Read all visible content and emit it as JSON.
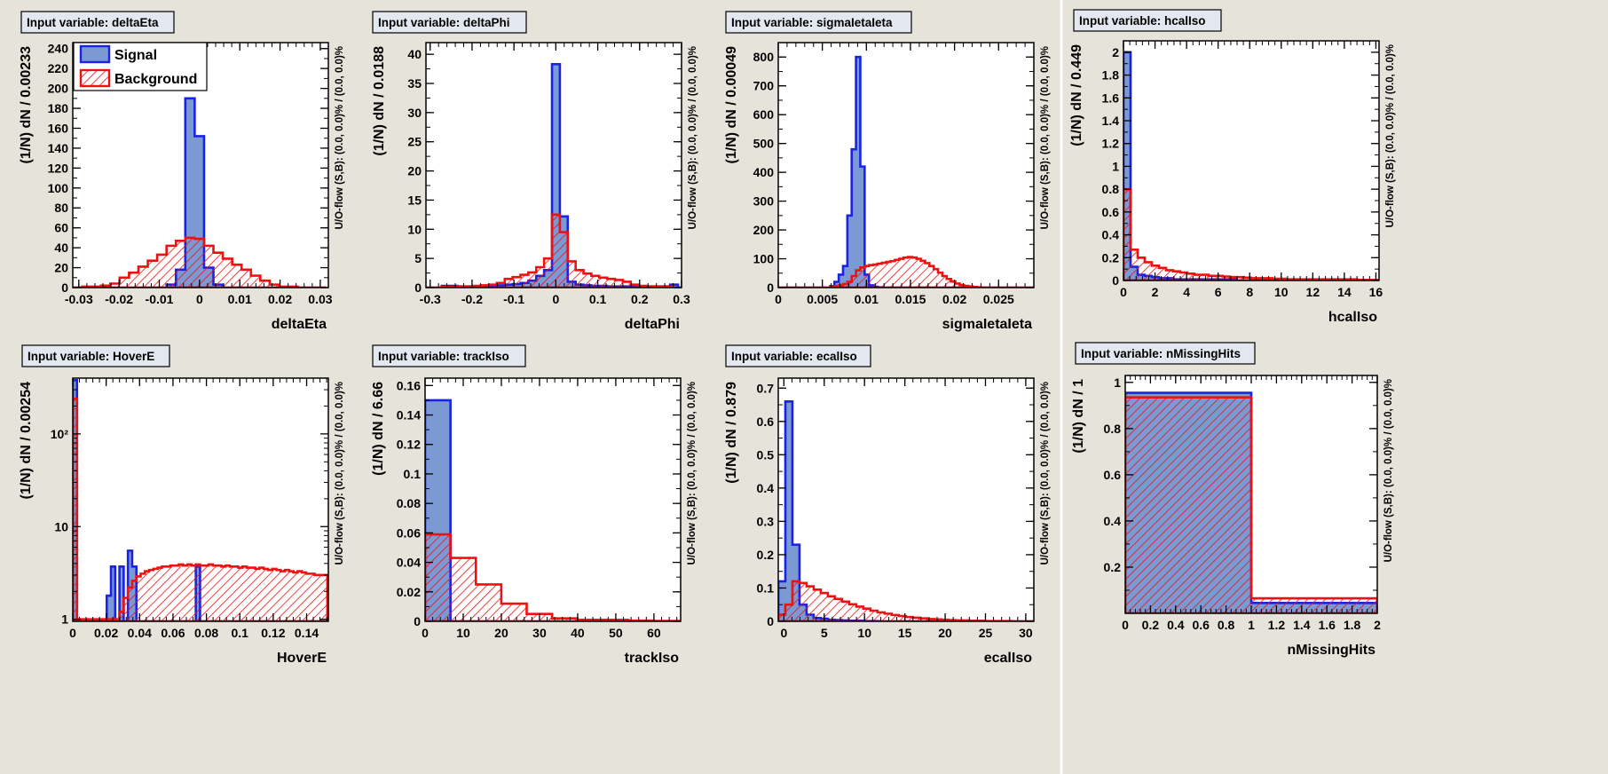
{
  "colors": {
    "background": "#e6e4da",
    "signal_fill": "#7b9ad4",
    "signal_line": "#1a22e6",
    "background_line": "#ee1111",
    "title_box": "#e3e8f0"
  },
  "legend": {
    "signal_label": "Signal",
    "background_label": "Background",
    "placement": "top-left of first panel"
  },
  "chart_data": [
    {
      "type": "histogram",
      "title": "Input variable: deltaEta",
      "xlabel": "deltaEta",
      "ylabel": "(1/N) dN / 0.00233",
      "overflow_label": "U/O-flow (S,B): (0.0, 0.0)% / (0.0, 0.0)%",
      "xlim": [
        -0.0315,
        0.032
      ],
      "ylim": [
        0,
        246
      ],
      "yscale": "linear",
      "xticks": [
        -0.03,
        -0.02,
        -0.01,
        0,
        0.01,
        0.02,
        0.03
      ],
      "xtick_labels": [
        "-0.03",
        "-0.02",
        "-0.01",
        "0",
        "0.01",
        "0.02",
        "0.03"
      ],
      "yticks": [
        0,
        20,
        40,
        60,
        80,
        100,
        120,
        140,
        160,
        180,
        200,
        220,
        240
      ],
      "ytick_labels": [
        "0",
        "20",
        "40",
        "60",
        "80",
        "100",
        "120",
        "140",
        "160",
        "180",
        "200",
        "220",
        "240"
      ],
      "bin_start": -0.0315,
      "bin_width": 0.00233,
      "signal": [
        0,
        0,
        0,
        0,
        0,
        0,
        0,
        0,
        0,
        0,
        3,
        18,
        190,
        152,
        20,
        3,
        0,
        0,
        0,
        0,
        0,
        0,
        0,
        0,
        0,
        0,
        0
      ],
      "background": [
        0,
        1,
        1,
        2,
        4,
        10,
        15,
        21,
        27,
        33,
        42,
        47,
        50,
        49,
        42,
        35,
        29,
        23,
        18,
        12,
        7,
        3,
        1,
        1,
        0,
        0,
        0
      ],
      "show_legend": true
    },
    {
      "type": "histogram",
      "title": "Input variable: deltaPhi",
      "xlabel": "deltaPhi",
      "ylabel": "(1/N) dN / 0.0188",
      "overflow_label": "U/O-flow (S,B): (0.0, 0.0)% / (0.0, 0.0)%",
      "xlim": [
        -0.31,
        0.3
      ],
      "ylim": [
        0,
        42
      ],
      "yscale": "linear",
      "xticks": [
        -0.3,
        -0.2,
        -0.1,
        0,
        0.1,
        0.2,
        0.3
      ],
      "xtick_labels": [
        "-0.3",
        "-0.2",
        "-0.1",
        "0",
        "0.1",
        "0.2",
        "0.3"
      ],
      "yticks": [
        0,
        5,
        10,
        15,
        20,
        25,
        30,
        35,
        40
      ],
      "ytick_labels": [
        "0",
        "5",
        "10",
        "15",
        "20",
        "25",
        "30",
        "35",
        "40"
      ],
      "bin_start": -0.31,
      "bin_width": 0.0188,
      "signal": [
        0,
        0,
        0.3,
        0.3,
        0.2,
        0.2,
        0.2,
        0.3,
        0.3,
        0.4,
        0.5,
        0.6,
        0.8,
        1.2,
        2,
        3,
        38.3,
        12.2,
        1,
        0.5,
        0.4,
        0.3,
        0.3,
        0.2,
        0.2,
        0.2,
        0.2,
        0.2,
        0.2,
        0.2,
        0.2,
        0.5,
        0
      ],
      "background": [
        0,
        0,
        0.1,
        0.1,
        0.2,
        0.2,
        0.3,
        0.4,
        0.5,
        0.8,
        1.5,
        1.8,
        2.2,
        2.6,
        3.5,
        5,
        12.5,
        9.5,
        4.5,
        3,
        2.4,
        2,
        1.7,
        1.5,
        1.3,
        1,
        0.5,
        0.3,
        0.2,
        0.1,
        0.1,
        0,
        0
      ],
      "show_legend": false
    },
    {
      "type": "histogram",
      "title": "Input variable: sigmaIetaIeta",
      "xlabel": "sigmaIetaIeta",
      "ylabel": "(1/N) dN / 0.00049",
      "overflow_label": "U/O-flow (S,B): (0.0, 0.0)% / (0.0, 0.0)%",
      "xlim": [
        0,
        0.029
      ],
      "ylim": [
        0,
        850
      ],
      "yscale": "linear",
      "xticks": [
        0,
        0.005,
        0.01,
        0.015,
        0.02,
        0.025
      ],
      "xtick_labels": [
        "0",
        "0.005",
        "0.01",
        "0.015",
        "0.02",
        "0.025"
      ],
      "yticks": [
        0,
        100,
        200,
        300,
        400,
        500,
        600,
        700,
        800
      ],
      "ytick_labels": [
        "0",
        "100",
        "200",
        "300",
        "400",
        "500",
        "600",
        "700",
        "800"
      ],
      "bin_start": 0,
      "bin_width": 0.00049,
      "signal": [
        0,
        0,
        0,
        0,
        0,
        0,
        0,
        0,
        0,
        0,
        0,
        0,
        5,
        20,
        45,
        75,
        250,
        480,
        800,
        420,
        45,
        8,
        3,
        1,
        0,
        0,
        0,
        0,
        0,
        0,
        0,
        0,
        0,
        0,
        0,
        0,
        0,
        0,
        0,
        0,
        0,
        0,
        0,
        0,
        0,
        0,
        0,
        0,
        0,
        0,
        0,
        0,
        0,
        0,
        0,
        0,
        0,
        0,
        0
      ],
      "background": [
        0,
        0,
        0,
        0,
        0,
        0,
        0,
        0,
        0,
        0,
        0,
        0,
        2,
        5,
        8,
        12,
        20,
        40,
        60,
        70,
        75,
        78,
        80,
        83,
        86,
        89,
        92,
        96,
        100,
        104,
        106,
        104,
        100,
        93,
        85,
        75,
        64,
        52,
        40,
        30,
        21,
        14,
        9,
        6,
        4,
        2,
        1,
        0,
        0,
        0,
        0,
        0,
        0,
        0,
        0,
        0,
        0,
        0,
        0
      ],
      "show_legend": false
    },
    {
      "type": "histogram",
      "title": "Input variable: hcalIso",
      "xlabel": "hcalIso",
      "ylabel": "(1/N) dN / 0.449",
      "overflow_label": "U/O-flow (S,B): (0.0, 0.0)% / (0.0, 0.0)%",
      "xlim": [
        0,
        16.2
      ],
      "ylim": [
        0,
        2.1
      ],
      "yscale": "linear",
      "xticks": [
        0,
        2,
        4,
        6,
        8,
        10,
        12,
        14,
        16
      ],
      "xtick_labels": [
        "0",
        "2",
        "4",
        "6",
        "8",
        "10",
        "12",
        "14",
        "16"
      ],
      "yticks": [
        0,
        0.2,
        0.4,
        0.6,
        0.8,
        1,
        1.2,
        1.4,
        1.6,
        1.8,
        2
      ],
      "ytick_labels": [
        "0",
        "0.2",
        "0.4",
        "0.6",
        "0.8",
        "1",
        "1.2",
        "1.4",
        "1.6",
        "1.8",
        "2"
      ],
      "bin_start": 0,
      "bin_width": 0.449,
      "signal": [
        2.0,
        0.12,
        0.05,
        0.04,
        0.03,
        0.02,
        0.02,
        0.01,
        0.01,
        0.01,
        0.01,
        0.01,
        0.01,
        0.01,
        0.01,
        0.01,
        0,
        0,
        0,
        0,
        0,
        0,
        0,
        0,
        0,
        0,
        0,
        0,
        0,
        0,
        0,
        0,
        0,
        0,
        0,
        0
      ],
      "background": [
        0.8,
        0.27,
        0.2,
        0.16,
        0.13,
        0.11,
        0.09,
        0.08,
        0.07,
        0.06,
        0.05,
        0.05,
        0.04,
        0.04,
        0.035,
        0.03,
        0.03,
        0.025,
        0.02,
        0.02,
        0.02,
        0.015,
        0.015,
        0.01,
        0.01,
        0.01,
        0.01,
        0.01,
        0.01,
        0.01,
        0.01,
        0.01,
        0.01,
        0.005,
        0.005,
        0.005
      ],
      "show_legend": false
    },
    {
      "type": "histogram",
      "title": "Input variable: HoverE",
      "xlabel": "HoverE",
      "ylabel": "(1/N) dN / 0.00254",
      "overflow_label": "U/O-flow (S,B): (0.0, 0.0)% / (0.0, 0.0)%",
      "xlim": [
        0,
        0.153
      ],
      "ylim": [
        0.95,
        400
      ],
      "yscale": "log",
      "xticks": [
        0,
        0.02,
        0.04,
        0.06,
        0.08,
        0.1,
        0.12,
        0.14
      ],
      "xtick_labels": [
        "0",
        "0.02",
        "0.04",
        "0.06",
        "0.08",
        "0.1",
        "0.12",
        "0.14"
      ],
      "yticks": [
        1,
        10,
        100
      ],
      "ytick_labels": [
        "1",
        "10",
        "10²"
      ],
      "bin_start": 0,
      "bin_width": 0.00254,
      "signal": [
        380,
        0,
        0,
        0,
        0,
        0,
        0,
        0,
        1.8,
        3.7,
        0,
        3.7,
        0,
        5.5,
        3.7,
        0,
        0,
        0,
        0,
        0,
        0,
        0,
        0,
        0,
        0,
        0,
        0,
        0,
        0,
        3.7,
        0,
        0,
        0,
        0,
        0,
        0,
        0,
        0,
        0,
        0,
        0,
        0,
        0,
        0,
        0,
        0,
        0,
        0,
        0,
        0,
        0,
        0,
        0,
        0,
        0,
        0,
        0,
        0,
        0,
        0
      ],
      "background": [
        240,
        1,
        1,
        1,
        1,
        1,
        1,
        1,
        1,
        1,
        1,
        1.2,
        1.7,
        2.2,
        2.6,
        2.9,
        3.1,
        3.3,
        3.4,
        3.5,
        3.6,
        3.7,
        3.7,
        3.8,
        3.8,
        3.9,
        3.8,
        3.9,
        3.8,
        3.9,
        3.8,
        3.8,
        3.9,
        3.8,
        3.8,
        3.7,
        3.8,
        3.7,
        3.7,
        3.6,
        3.7,
        3.6,
        3.6,
        3.5,
        3.6,
        3.5,
        3.4,
        3.5,
        3.4,
        3.3,
        3.4,
        3.3,
        3.2,
        3.3,
        3.2,
        3.1,
        3.1,
        3.0,
        3.0,
        3.0
      ],
      "show_legend": false
    },
    {
      "type": "histogram",
      "title": "Input variable: trackIso",
      "xlabel": "trackIso",
      "ylabel": "(1/N) dN / 6.66",
      "overflow_label": "U/O-flow (S,B): (0.0, 0.0)% / (0.0, 0.0)%",
      "xlim": [
        0,
        67
      ],
      "ylim": [
        0,
        0.165
      ],
      "yscale": "linear",
      "xticks": [
        0,
        10,
        20,
        30,
        40,
        50,
        60
      ],
      "xtick_labels": [
        "0",
        "10",
        "20",
        "30",
        "40",
        "50",
        "60"
      ],
      "yticks": [
        0,
        0.02,
        0.04,
        0.06,
        0.08,
        0.1,
        0.12,
        0.14,
        0.16
      ],
      "ytick_labels": [
        "0",
        "0.02",
        "0.04",
        "0.06",
        "0.08",
        "0.1",
        "0.12",
        "0.14",
        "0.16"
      ],
      "bin_start": 0,
      "bin_width": 6.66,
      "signal": [
        0.15,
        0,
        0,
        0,
        0,
        0,
        0,
        0,
        0,
        0,
        0
      ],
      "background": [
        0.059,
        0.043,
        0.025,
        0.012,
        0.005,
        0.002,
        0.001,
        0.001,
        0.0005,
        0.0003,
        0.0002
      ],
      "show_legend": false
    },
    {
      "type": "histogram",
      "title": "Input variable: ecalIso",
      "xlabel": "ecalIso",
      "ylabel": "(1/N) dN / 0.879",
      "overflow_label": "U/O-flow (S,B): (0.0, 0.0)% / (0.0, 0.0)%",
      "xlim": [
        -0.7,
        31
      ],
      "ylim": [
        0,
        0.73
      ],
      "yscale": "linear",
      "xticks": [
        0,
        5,
        10,
        15,
        20,
        25,
        30
      ],
      "xtick_labels": [
        "0",
        "5",
        "10",
        "15",
        "20",
        "25",
        "30"
      ],
      "yticks": [
        0,
        0.1,
        0.2,
        0.3,
        0.4,
        0.5,
        0.6,
        0.7
      ],
      "ytick_labels": [
        "0",
        "0.1",
        "0.2",
        "0.3",
        "0.4",
        "0.5",
        "0.6",
        "0.7"
      ],
      "bin_start": -0.7,
      "bin_width": 0.879,
      "signal": [
        0.12,
        0.66,
        0.23,
        0.05,
        0.02,
        0.01,
        0.008,
        0.005,
        0.004,
        0.003,
        0.002,
        0.002,
        0.001,
        0.001,
        0,
        0,
        0,
        0,
        0,
        0,
        0,
        0,
        0,
        0,
        0,
        0,
        0,
        0,
        0,
        0,
        0,
        0,
        0,
        0,
        0,
        0
      ],
      "background": [
        0.02,
        0.05,
        0.12,
        0.115,
        0.105,
        0.095,
        0.085,
        0.075,
        0.067,
        0.059,
        0.051,
        0.044,
        0.038,
        0.032,
        0.027,
        0.023,
        0.019,
        0.016,
        0.013,
        0.011,
        0.009,
        0.007,
        0.006,
        0.005,
        0.004,
        0.003,
        0.003,
        0.002,
        0.002,
        0.001,
        0.001,
        0.001,
        0.001,
        0,
        0,
        0
      ],
      "show_legend": false
    },
    {
      "type": "histogram",
      "title": "Input variable: nMissingHits",
      "xlabel": "nMissingHits",
      "ylabel": "(1/N) dN / 1",
      "overflow_label": "U/O-flow (S,B): (0.0, 0.0)% / (0.0, 0.0)%",
      "xlim": [
        0,
        2
      ],
      "ylim": [
        0,
        1.03
      ],
      "yscale": "linear",
      "xticks": [
        0,
        0.2,
        0.4,
        0.6,
        0.8,
        1,
        1.2,
        1.4,
        1.6,
        1.8,
        2
      ],
      "xtick_labels": [
        "0",
        "0.2",
        "0.4",
        "0.6",
        "0.8",
        "1",
        "1.2",
        "1.4",
        "1.6",
        "1.8",
        "2"
      ],
      "yticks": [
        0.2,
        0.4,
        0.6,
        0.8,
        1
      ],
      "ytick_labels": [
        "0.2",
        "0.4",
        "0.6",
        "0.8",
        "1"
      ],
      "bin_start": 0,
      "bin_width": 1,
      "signal": [
        0.955,
        0.045
      ],
      "background": [
        0.935,
        0.065
      ],
      "show_legend": false
    }
  ]
}
